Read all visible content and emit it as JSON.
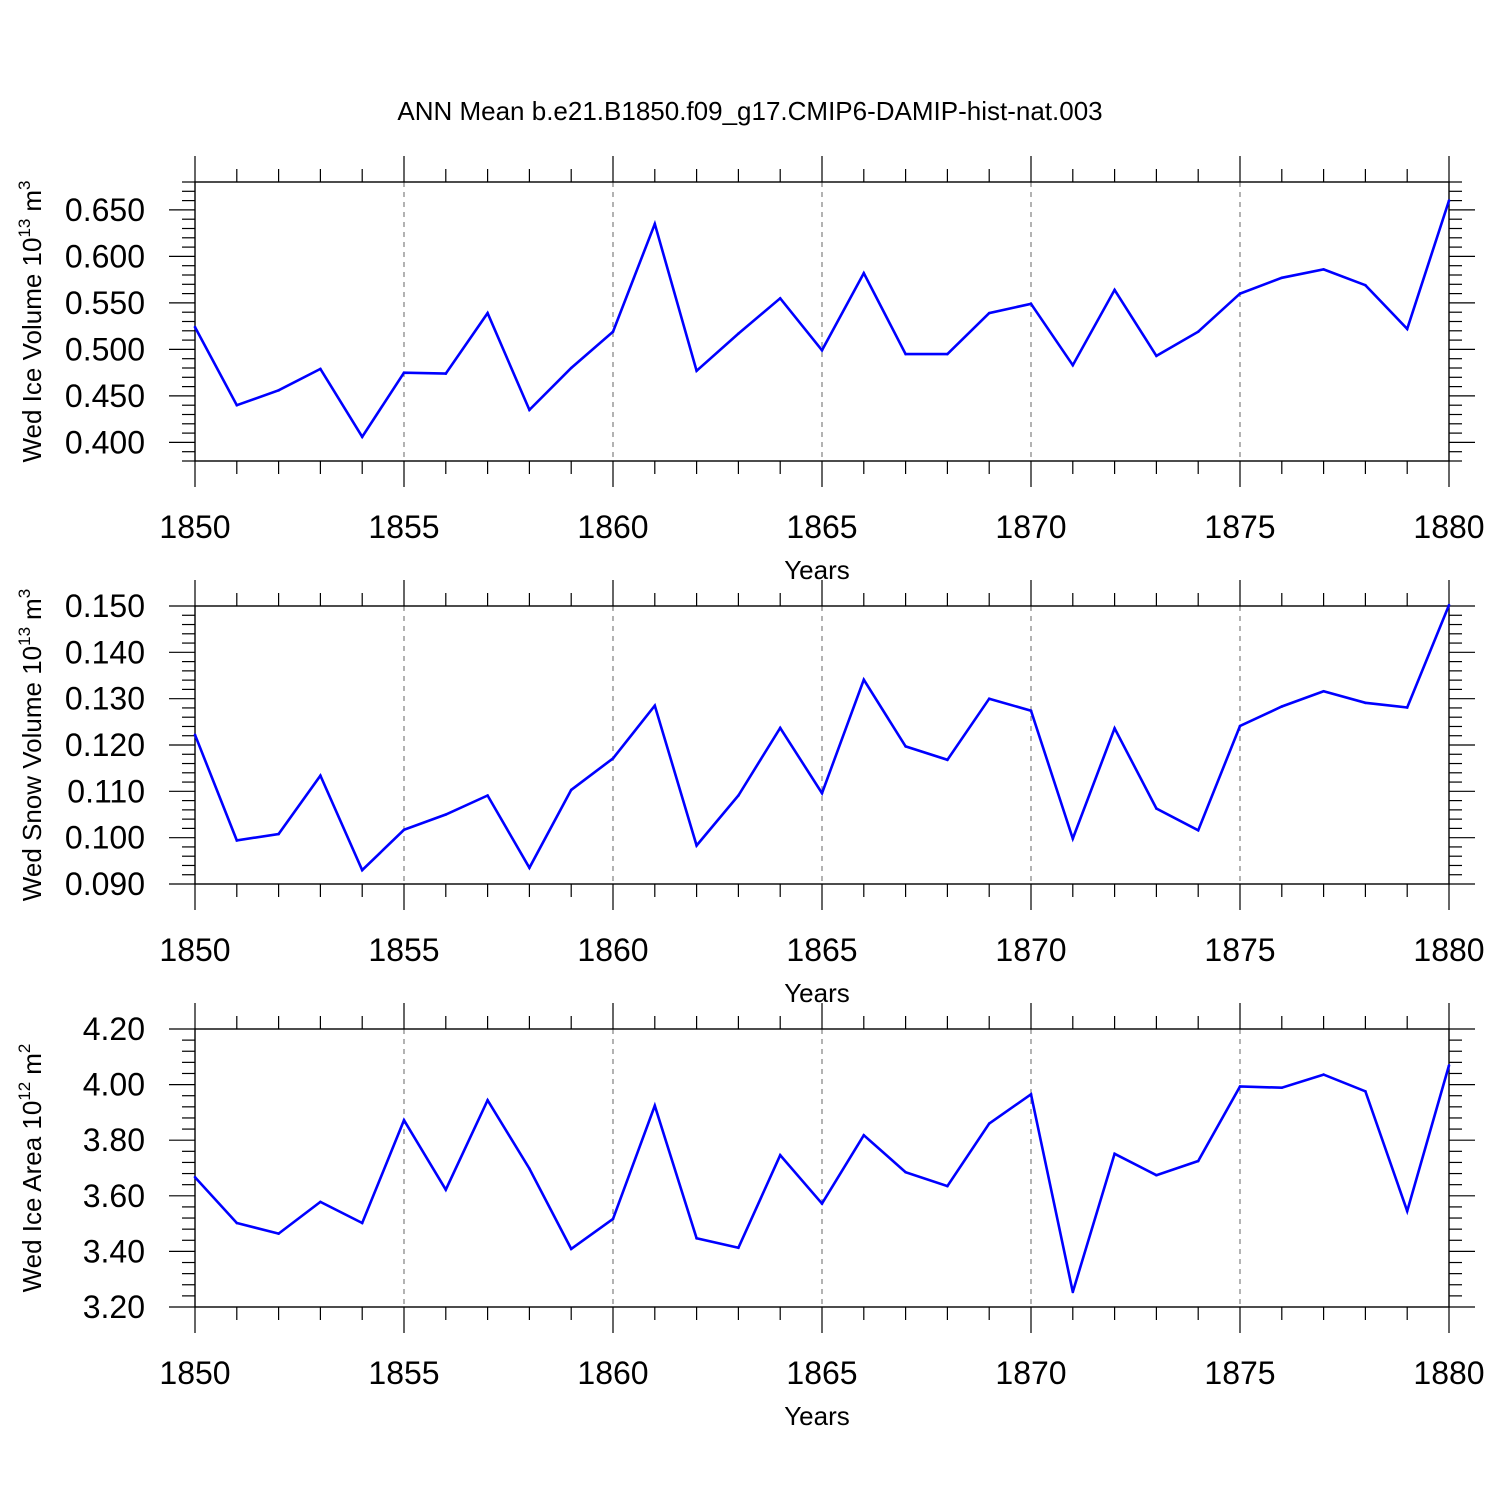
{
  "title": "ANN Mean b.e21.B1850.f09_g17.CMIP6-DAMIP-hist-nat.003",
  "colors": {
    "line": "#0000ff",
    "axis": "#000000",
    "grid": "#808080"
  },
  "chart_data": [
    {
      "type": "line",
      "ylabel": "Wed Ice Volume 10",
      "ylabel_sup": "13",
      "ylabel_unit": "m",
      "ylabel_unit_sup": "3",
      "xlabel": "Years",
      "xlim": [
        1850,
        1880
      ],
      "ylim": [
        0.38,
        0.68
      ],
      "xticks": [
        "1850",
        "1855",
        "1860",
        "1865",
        "1870",
        "1875",
        "1880"
      ],
      "yticks": [
        "0.400",
        "0.450",
        "0.500",
        "0.550",
        "0.600",
        "0.650"
      ],
      "x": [
        1850,
        1851,
        1852,
        1853,
        1854,
        1855,
        1856,
        1857,
        1858,
        1859,
        1860,
        1861,
        1862,
        1863,
        1864,
        1865,
        1866,
        1867,
        1868,
        1869,
        1870,
        1871,
        1872,
        1873,
        1874,
        1875,
        1876,
        1877,
        1878,
        1879,
        1880
      ],
      "values": [
        0.524,
        0.44,
        0.456,
        0.479,
        0.406,
        0.475,
        0.474,
        0.539,
        0.435,
        0.48,
        0.519,
        0.635,
        0.477,
        0.517,
        0.555,
        0.499,
        0.582,
        0.495,
        0.495,
        0.539,
        0.549,
        0.483,
        0.564,
        0.493,
        0.519,
        0.56,
        0.577,
        0.586,
        0.569,
        0.522,
        0.66
      ],
      "grid": "vertical dashed at major x ticks"
    },
    {
      "type": "line",
      "ylabel": "Wed Snow Volume 10",
      "ylabel_sup": "13",
      "ylabel_unit": "m",
      "ylabel_unit_sup": "3",
      "xlabel": "Years",
      "xlim": [
        1850,
        1880
      ],
      "ylim": [
        0.09,
        0.15
      ],
      "xticks": [
        "1850",
        "1855",
        "1860",
        "1865",
        "1870",
        "1875",
        "1880"
      ],
      "yticks": [
        "0.090",
        "0.100",
        "0.110",
        "0.120",
        "0.130",
        "0.140",
        "0.150"
      ],
      "x": [
        1850,
        1851,
        1852,
        1853,
        1854,
        1855,
        1856,
        1857,
        1858,
        1859,
        1860,
        1861,
        1862,
        1863,
        1864,
        1865,
        1866,
        1867,
        1868,
        1869,
        1870,
        1871,
        1872,
        1873,
        1874,
        1875,
        1876,
        1877,
        1878,
        1879,
        1880
      ],
      "values": [
        0.1222,
        0.0994,
        0.1008,
        0.1134,
        0.093,
        0.1017,
        0.105,
        0.1091,
        0.0935,
        0.1103,
        0.1171,
        0.1285,
        0.0983,
        0.1091,
        0.1237,
        0.1096,
        0.1341,
        0.1197,
        0.1168,
        0.13,
        0.1274,
        0.0998,
        0.1236,
        0.1063,
        0.1016,
        0.1241,
        0.1283,
        0.1316,
        0.1291,
        0.1281,
        0.1502
      ],
      "grid": "vertical dashed at major x ticks"
    },
    {
      "type": "line",
      "ylabel": "Wed Ice Area 10",
      "ylabel_sup": "12",
      "ylabel_unit": "m",
      "ylabel_unit_sup": "2",
      "xlabel": "Years",
      "xlim": [
        1850,
        1880
      ],
      "ylim": [
        3.2,
        4.2
      ],
      "xticks": [
        "1850",
        "1855",
        "1860",
        "1865",
        "1870",
        "1875",
        "1880"
      ],
      "yticks": [
        "3.20",
        "3.40",
        "3.60",
        "3.80",
        "4.00",
        "4.20"
      ],
      "x": [
        1850,
        1851,
        1852,
        1853,
        1854,
        1855,
        1856,
        1857,
        1858,
        1859,
        1860,
        1861,
        1862,
        1863,
        1864,
        1865,
        1866,
        1867,
        1868,
        1869,
        1870,
        1871,
        1872,
        1873,
        1874,
        1875,
        1876,
        1877,
        1878,
        1879,
        1880
      ],
      "values": [
        3.667,
        3.502,
        3.464,
        3.578,
        3.502,
        3.872,
        3.622,
        3.944,
        3.698,
        3.409,
        3.517,
        3.924,
        3.447,
        3.413,
        3.746,
        3.572,
        3.818,
        3.685,
        3.635,
        3.86,
        3.965,
        3.254,
        3.751,
        3.674,
        3.725,
        3.993,
        3.989,
        4.036,
        3.976,
        3.545,
        4.069
      ],
      "grid": "vertical dashed at major x ticks"
    }
  ]
}
